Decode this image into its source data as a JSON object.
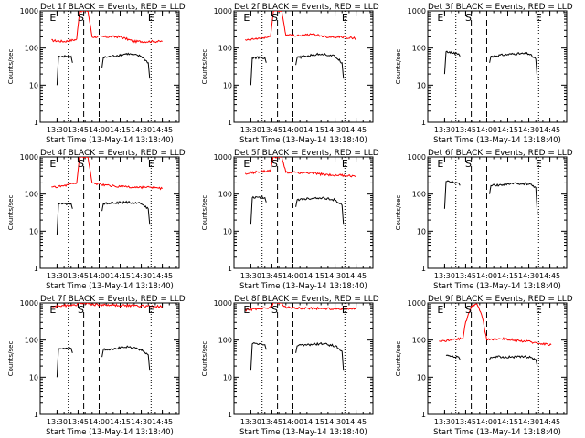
{
  "figure": {
    "xlabel": "Start Time (13-May-14 13:18:40)",
    "ylabel": "Counts/sec",
    "yscale": "log",
    "ylim": [
      1,
      1000
    ],
    "xlim_minutes": [
      13.3,
      14.95
    ],
    "x_tick_labels": [
      "13:30",
      "13:45",
      "14:00",
      "14:15",
      "14:30",
      "14:45"
    ],
    "y_tick_labels": [
      "1",
      "10",
      "100",
      "1000"
    ],
    "colors": {
      "events": "#000000",
      "lld": "#ff0000",
      "axes": "#000000"
    },
    "line_styles": {
      "dotted": "dotted",
      "dashed": "dashed"
    }
  },
  "chart_data": [
    {
      "type": "line",
      "title": "Det 1f BLACK = Events, RED = LLD",
      "markers": [
        {
          "label": "E",
          "x": "13:27"
        },
        {
          "label": "S",
          "x": "13:47"
        },
        {
          "label": "E",
          "x": "14:37"
        }
      ],
      "dotted_lines": [
        "13:38",
        "14:37"
      ],
      "dashed_lines": [
        "13:49",
        "14:00"
      ],
      "series": [
        {
          "name": "Events",
          "color": "#000000",
          "segments": [
            {
              "x": [
                "13:30",
                "13:31",
                "13:40",
                "13:41"
              ],
              "y": [
                10,
                60,
                60,
                40
              ]
            },
            {
              "x": [
                "14:02",
                "14:03",
                "14:20",
                "14:30",
                "14:35",
                "14:36"
              ],
              "y": [
                30,
                55,
                70,
                60,
                40,
                15
              ]
            }
          ]
        },
        {
          "name": "LLD",
          "color": "#ff0000",
          "segments": [
            {
              "x": [
                "13:26",
                "13:35",
                "13:44",
                "13:46",
                "13:52",
                "13:55",
                "14:05",
                "14:15",
                "14:25",
                "14:35",
                "14:45"
              ],
              "y": [
                160,
                150,
                170,
                1000,
                1000,
                200,
                200,
                200,
                150,
                150,
                150
              ]
            }
          ]
        }
      ]
    },
    {
      "type": "line",
      "title": "Det 2f BLACK = Events, RED = LLD",
      "markers": [
        {
          "label": "E",
          "x": "13:27"
        },
        {
          "label": "S",
          "x": "13:47"
        },
        {
          "label": "E",
          "x": "14:37"
        }
      ],
      "dotted_lines": [
        "13:38",
        "14:37"
      ],
      "dashed_lines": [
        "13:49",
        "14:00"
      ],
      "series": [
        {
          "name": "Events",
          "color": "#000000",
          "segments": [
            {
              "x": [
                "13:30",
                "13:31",
                "13:40",
                "13:41"
              ],
              "y": [
                10,
                55,
                55,
                40
              ]
            },
            {
              "x": [
                "14:02",
                "14:03",
                "14:20",
                "14:30",
                "14:35",
                "14:36"
              ],
              "y": [
                35,
                55,
                70,
                60,
                40,
                15
              ]
            }
          ]
        },
        {
          "name": "LLD",
          "color": "#ff0000",
          "segments": [
            {
              "x": [
                "13:26",
                "13:35",
                "13:44",
                "13:46",
                "13:52",
                "13:55",
                "14:05",
                "14:15",
                "14:25",
                "14:35",
                "14:45"
              ],
              "y": [
                160,
                180,
                200,
                1000,
                1000,
                220,
                220,
                230,
                200,
                200,
                180
              ]
            }
          ]
        }
      ]
    },
    {
      "type": "line",
      "title": "Det 3f BLACK = Events, RED = LLD",
      "markers": [
        {
          "label": "E",
          "x": "13:27"
        },
        {
          "label": "S",
          "x": "13:47"
        },
        {
          "label": "E",
          "x": "14:37"
        }
      ],
      "dotted_lines": [
        "13:38",
        "14:37"
      ],
      "dashed_lines": [
        "13:49",
        "14:00"
      ],
      "series": [
        {
          "name": "Events",
          "color": "#000000",
          "segments": [
            {
              "x": [
                "13:30",
                "13:31",
                "13:40",
                "13:41"
              ],
              "y": [
                20,
                80,
                70,
                60
              ]
            },
            {
              "x": [
                "14:02",
                "14:03",
                "14:20",
                "14:30",
                "14:35",
                "14:36"
              ],
              "y": [
                40,
                60,
                70,
                70,
                50,
                15
              ]
            }
          ]
        }
      ]
    },
    {
      "type": "line",
      "title": "Det 4f BLACK = Events, RED = LLD",
      "markers": [
        {
          "label": "E",
          "x": "13:27"
        },
        {
          "label": "S",
          "x": "13:47"
        },
        {
          "label": "E",
          "x": "14:37"
        }
      ],
      "dotted_lines": [
        "13:38",
        "14:37"
      ],
      "dashed_lines": [
        "13:49",
        "14:00"
      ],
      "series": [
        {
          "name": "Events",
          "color": "#000000",
          "segments": [
            {
              "x": [
                "13:30",
                "13:31",
                "13:40",
                "13:41"
              ],
              "y": [
                8,
                55,
                55,
                40
              ]
            },
            {
              "x": [
                "14:02",
                "14:03",
                "14:20",
                "14:30",
                "14:35",
                "14:36"
              ],
              "y": [
                35,
                55,
                60,
                55,
                40,
                15
              ]
            }
          ]
        },
        {
          "name": "LLD",
          "color": "#ff0000",
          "segments": [
            {
              "x": [
                "13:26",
                "13:35",
                "13:44",
                "13:46",
                "13:52",
                "13:55",
                "14:05",
                "14:15",
                "14:25",
                "14:35",
                "14:45"
              ],
              "y": [
                150,
                170,
                200,
                1000,
                1000,
                200,
                170,
                160,
                150,
                150,
                140
              ]
            }
          ]
        }
      ]
    },
    {
      "type": "line",
      "title": "Det 5f BLACK = Events, RED = LLD",
      "markers": [
        {
          "label": "E",
          "x": "13:27"
        },
        {
          "label": "S",
          "x": "13:47"
        },
        {
          "label": "E",
          "x": "14:37"
        }
      ],
      "dotted_lines": [
        "13:38",
        "14:37"
      ],
      "dashed_lines": [
        "13:49",
        "14:00"
      ],
      "series": [
        {
          "name": "Events",
          "color": "#000000",
          "segments": [
            {
              "x": [
                "13:30",
                "13:31",
                "13:40",
                "13:41"
              ],
              "y": [
                15,
                80,
                80,
                60
              ]
            },
            {
              "x": [
                "14:02",
                "14:03",
                "14:20",
                "14:30",
                "14:35",
                "14:36"
              ],
              "y": [
                45,
                70,
                80,
                70,
                50,
                15
              ]
            }
          ]
        },
        {
          "name": "LLD",
          "color": "#ff0000",
          "segments": [
            {
              "x": [
                "13:26",
                "13:35",
                "13:44",
                "13:46",
                "13:52",
                "13:55",
                "14:05",
                "14:15",
                "14:25",
                "14:35",
                "14:45"
              ],
              "y": [
                350,
                400,
                420,
                1000,
                1000,
                380,
                380,
                360,
                330,
                320,
                300
              ]
            }
          ]
        }
      ]
    },
    {
      "type": "line",
      "title": "Det 6f BLACK = Events, RED = LLD",
      "markers": [
        {
          "label": "E",
          "x": "13:27"
        },
        {
          "label": "S",
          "x": "13:47"
        },
        {
          "label": "E",
          "x": "14:37"
        }
      ],
      "dotted_lines": [
        "13:38",
        "14:37"
      ],
      "dashed_lines": [
        "13:49",
        "14:00"
      ],
      "series": [
        {
          "name": "Events",
          "color": "#000000",
          "segments": [
            {
              "x": [
                "13:30",
                "13:31",
                "13:40",
                "13:41"
              ],
              "y": [
                40,
                220,
                200,
                170
              ]
            },
            {
              "x": [
                "14:02",
                "14:03",
                "14:20",
                "14:30",
                "14:35",
                "14:36"
              ],
              "y": [
                100,
                170,
                190,
                190,
                150,
                30
              ]
            }
          ]
        }
      ]
    },
    {
      "type": "line",
      "title": "Det 7f BLACK = Events, RED = LLD",
      "markers": [
        {
          "label": "E",
          "x": "13:27"
        },
        {
          "label": "S",
          "x": "13:47"
        },
        {
          "label": "E",
          "x": "14:37"
        }
      ],
      "dotted_lines": [
        "13:38",
        "14:37"
      ],
      "dashed_lines": [
        "13:49",
        "14:00"
      ],
      "series": [
        {
          "name": "Events",
          "color": "#000000",
          "segments": [
            {
              "x": [
                "13:30",
                "13:31",
                "13:40",
                "13:41"
              ],
              "y": [
                10,
                60,
                60,
                45
              ]
            },
            {
              "x": [
                "14:02",
                "14:03",
                "14:20",
                "14:30",
                "14:35",
                "14:36"
              ],
              "y": [
                35,
                55,
                65,
                55,
                40,
                15
              ]
            }
          ]
        },
        {
          "name": "LLD",
          "color": "#ff0000",
          "segments": [
            {
              "x": [
                "13:26",
                "13:35",
                "13:44",
                "13:46",
                "13:52",
                "13:55",
                "14:05",
                "14:15",
                "14:25",
                "14:35",
                "14:45"
              ],
              "y": [
                800,
                850,
                900,
                1000,
                1000,
                900,
                880,
                860,
                840,
                820,
                800
              ]
            }
          ]
        }
      ]
    },
    {
      "type": "line",
      "title": "Det 8f BLACK = Events, RED = LLD",
      "markers": [
        {
          "label": "E",
          "x": "13:27"
        },
        {
          "label": "S",
          "x": "13:47"
        },
        {
          "label": "E",
          "x": "14:37"
        }
      ],
      "dotted_lines": [
        "13:38",
        "14:37"
      ],
      "dashed_lines": [
        "13:49",
        "14:00"
      ],
      "series": [
        {
          "name": "Events",
          "color": "#000000",
          "segments": [
            {
              "x": [
                "13:30",
                "13:31",
                "13:40",
                "13:41"
              ],
              "y": [
                15,
                80,
                75,
                55
              ]
            },
            {
              "x": [
                "14:02",
                "14:03",
                "14:20",
                "14:30",
                "14:35",
                "14:36"
              ],
              "y": [
                45,
                70,
                80,
                70,
                50,
                15
              ]
            }
          ]
        },
        {
          "name": "LLD",
          "color": "#ff0000",
          "segments": [
            {
              "x": [
                "13:26",
                "13:35",
                "13:44",
                "13:46",
                "13:52",
                "13:55",
                "14:05",
                "14:15",
                "14:25",
                "14:35",
                "14:45"
              ],
              "y": [
                650,
                700,
                750,
                1000,
                1000,
                750,
                730,
                720,
                700,
                700,
                680
              ]
            }
          ]
        }
      ]
    },
    {
      "type": "line",
      "title": "Det 9f BLACK = Events, RED = LLD",
      "markers": [
        {
          "label": "E",
          "x": "13:27"
        },
        {
          "label": "S",
          "x": "13:47"
        },
        {
          "label": "E",
          "x": "14:37"
        }
      ],
      "dotted_lines": [
        "13:38",
        "14:37"
      ],
      "dashed_lines": [
        "13:49",
        "14:00"
      ],
      "series": [
        {
          "name": "Events",
          "color": "#000000",
          "segments": [
            {
              "x": [
                "13:31",
                "13:40",
                "13:41"
              ],
              "y": [
                40,
                35,
                30
              ]
            },
            {
              "x": [
                "14:02",
                "14:03",
                "14:20",
                "14:30",
                "14:35",
                "14:36"
              ],
              "y": [
                30,
                35,
                35,
                35,
                30,
                20
              ]
            }
          ]
        },
        {
          "name": "LLD",
          "color": "#ff0000",
          "segments": [
            {
              "x": [
                "13:26",
                "13:35",
                "13:43",
                "13:45",
                "13:49",
                "13:53",
                "13:57",
                "14:00",
                "14:10",
                "14:20",
                "14:30",
                "14:40",
                "14:46"
              ],
              "y": [
                90,
                100,
                110,
                300,
                800,
                1000,
                400,
                100,
                110,
                100,
                90,
                80,
                75
              ]
            }
          ]
        }
      ]
    }
  ]
}
